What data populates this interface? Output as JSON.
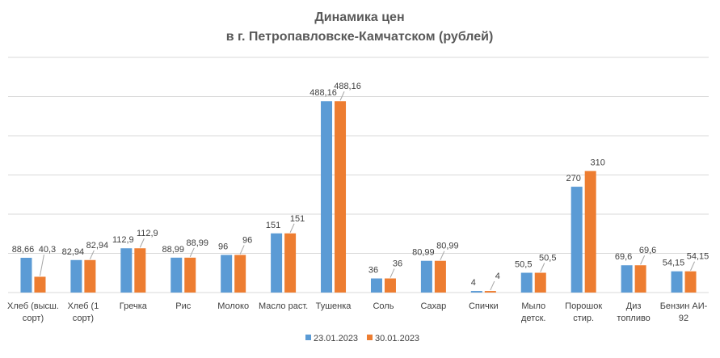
{
  "chart_data": {
    "type": "bar",
    "title_line1": "Динамика цен",
    "title_line2": "в г. Петропавловске-Камчатском (рублей)",
    "categories": [
      [
        "Хлеб (высш.",
        "сорт)"
      ],
      [
        "Хлеб (1",
        "сорт)"
      ],
      [
        "Гречка"
      ],
      [
        "Рис"
      ],
      [
        "Молоко"
      ],
      [
        "Масло раст."
      ],
      [
        "Тушенка"
      ],
      [
        "Соль"
      ],
      [
        "Сахар"
      ],
      [
        "Спички"
      ],
      [
        "Мыло",
        "детск."
      ],
      [
        "Порошок",
        "стир."
      ],
      [
        "Диз",
        "топливо"
      ],
      [
        "Бензин АИ-",
        "92"
      ]
    ],
    "series": [
      {
        "name": "23.01.2023",
        "color": "#5b9bd5",
        "values": [
          88.66,
          82.94,
          112.9,
          88.99,
          96,
          151,
          488.16,
          36,
          80.99,
          4,
          50.5,
          270,
          69.6,
          54.15
        ],
        "labels": [
          "88,66",
          "82,94",
          "112,9",
          "88,99",
          "96",
          "151",
          "488,16",
          "36",
          "80,99",
          "4",
          "50,5",
          "270",
          "69,6",
          "54,15"
        ]
      },
      {
        "name": "30.01.2023",
        "color": "#ed7d31",
        "values": [
          40.3,
          82.94,
          112.9,
          88.99,
          96,
          151,
          488.16,
          36,
          80.99,
          4,
          50.5,
          310,
          69.6,
          54.15
        ],
        "labels": [
          "40,3",
          "82,94",
          "112,9",
          "88,99",
          "96",
          "151",
          "488,16",
          "36",
          "80,99",
          "4",
          "50,5",
          "310",
          "69,6",
          "54,15"
        ]
      }
    ],
    "ylim": [
      0,
      600
    ],
    "gridlines": [
      100,
      200,
      300,
      400,
      500,
      600
    ],
    "grid": true,
    "legend_position": "bottom"
  }
}
